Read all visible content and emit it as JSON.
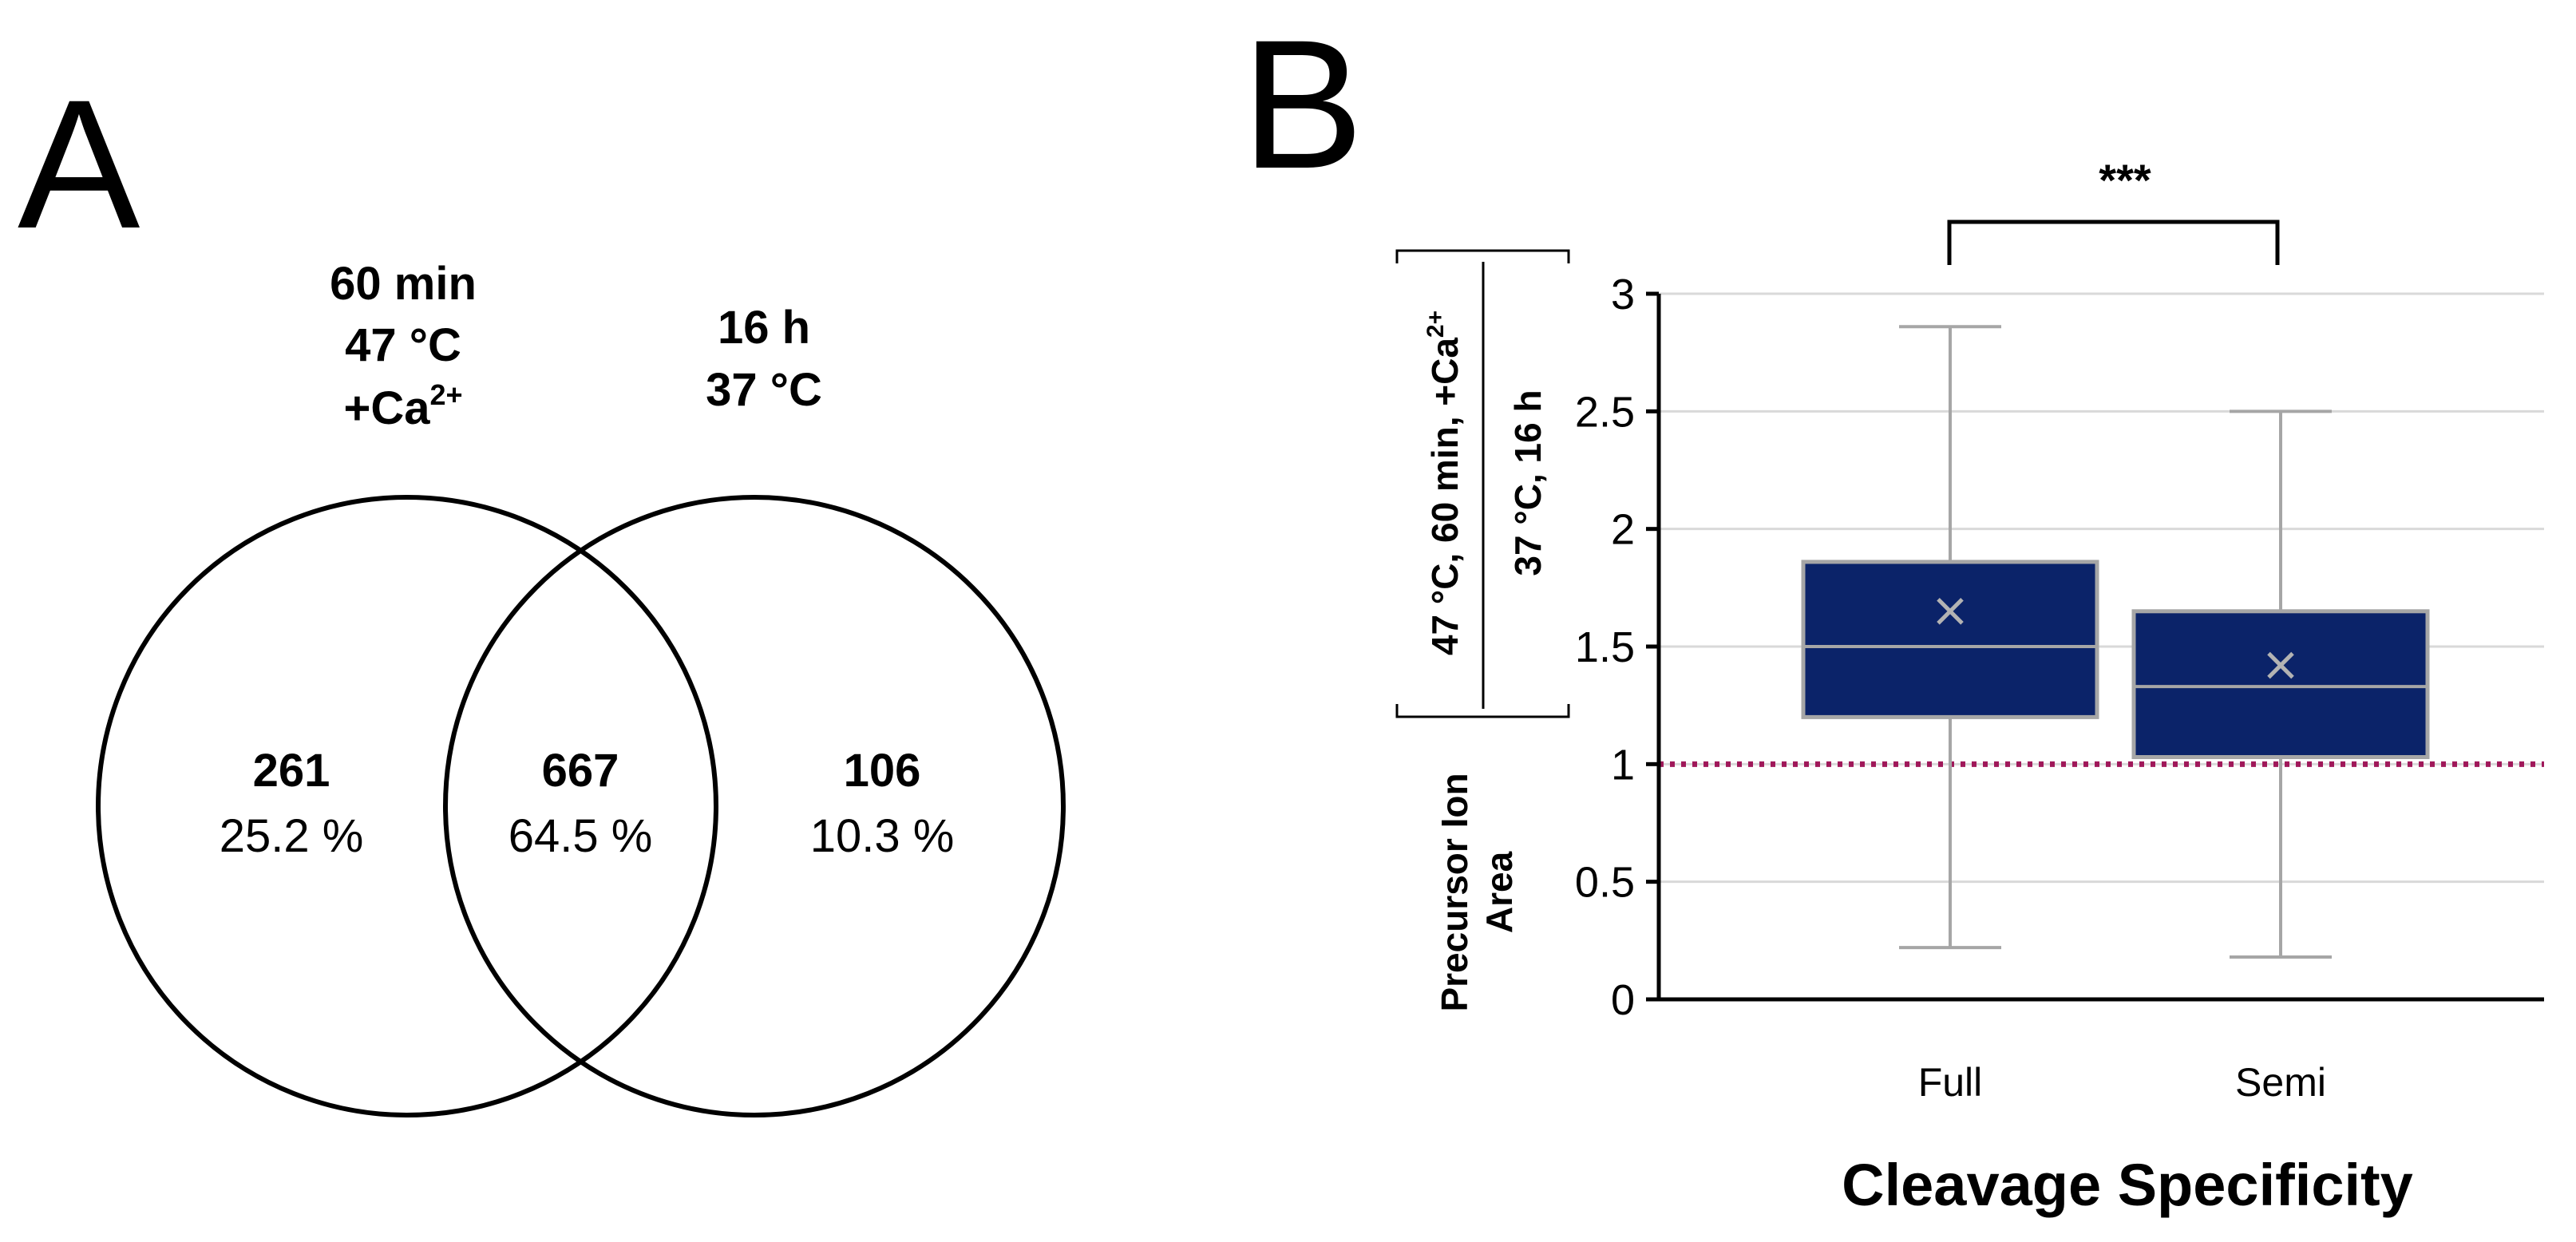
{
  "panels": {
    "a_label": "A",
    "b_label": "B"
  },
  "venn": {
    "set1": {
      "line1": "60 min",
      "line2": "47 °C",
      "line3_base": "+Ca",
      "line3_sup": "2+"
    },
    "set2": {
      "line1": "16 h",
      "line2": "37 °C"
    },
    "regions": {
      "left": {
        "count": "261",
        "percent": "25.2 %"
      },
      "overlap": {
        "count": "667",
        "percent": "64.5 %"
      },
      "right": {
        "count": "106",
        "percent": "10.3 %"
      }
    }
  },
  "chart_data": {
    "type": "box",
    "title": "",
    "xlabel": "Cleavage Specificity",
    "ylabel": {
      "ratio_numerator_base": "47 °C, 60 min, +Ca",
      "ratio_numerator_sup": "2+",
      "ratio_denominator": "37 °C, 16 h",
      "line1": "Precursor Ion",
      "line2": "Area"
    },
    "categories": [
      "Full",
      "Semi"
    ],
    "yticks": [
      "0",
      "0.5",
      "1",
      "1.5",
      "2",
      "2.5",
      "3"
    ],
    "ylim": [
      0,
      3
    ],
    "grid": true,
    "series": [
      {
        "min": 0.22,
        "q1": 1.2,
        "median": 1.5,
        "q3": 1.86,
        "max": 2.86,
        "mean": 1.65
      },
      {
        "min": 0.18,
        "q1": 1.03,
        "median": 1.33,
        "q3": 1.65,
        "max": 2.5,
        "mean": 1.42
      }
    ],
    "reference_line": {
      "y": 1.0,
      "color": "#a0185a",
      "style": "dotted"
    },
    "box_color": "#0b2369",
    "significance": "***"
  }
}
